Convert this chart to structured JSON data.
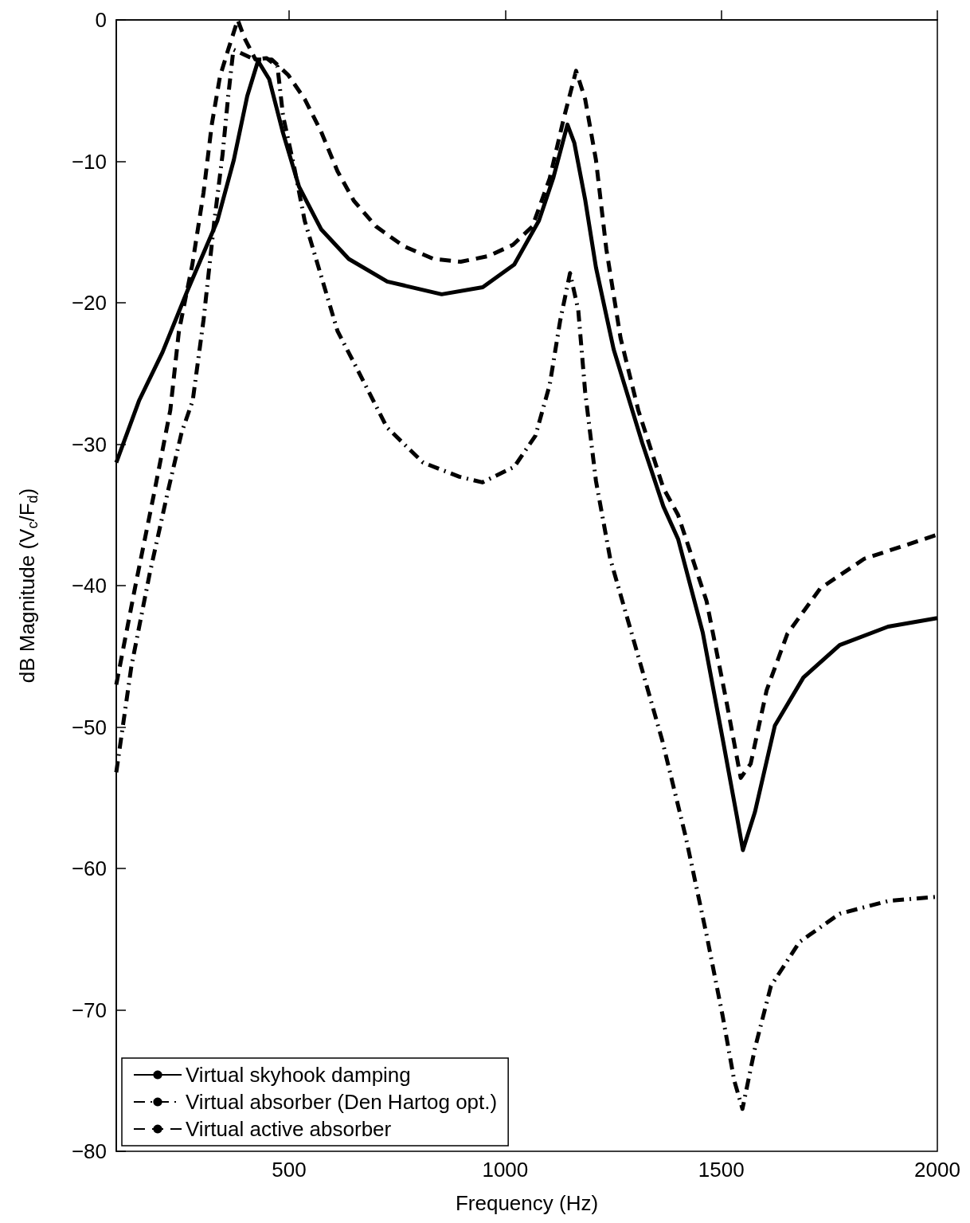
{
  "chart_data": {
    "type": "line",
    "xlabel": "Frequency (Hz)",
    "ylabel": "dB Magnitude (V$_{c}$/F$_{d}$)",
    "xlim": [
      100,
      2000
    ],
    "xticks": [
      500,
      1000,
      1500,
      2000
    ],
    "ylim": [
      -80,
      0
    ],
    "yticks": [
      -80,
      -70,
      -60,
      -50,
      -40,
      -30,
      -20,
      -10,
      0
    ],
    "grid": false,
    "legend": "bottom left",
    "marker": "none",
    "series": [
      {
        "name": "Virtual skyhook damping",
        "color": "#000000",
        "line_style": "solid",
        "x": [
          100,
          153,
          207,
          264,
          334,
          372,
          403,
          428,
          454,
          485,
          523,
          574,
          638,
          727,
          853,
          948,
          1021,
          1078,
          1111,
          1144,
          1160,
          1185,
          1210,
          1251,
          1317,
          1366,
          1400,
          1457,
          1503,
          1536,
          1550,
          1578,
          1624,
          1690,
          1774,
          1886,
          2000
        ],
        "values": [
          -31.3,
          -26.9,
          -23.5,
          -19.2,
          -14.2,
          -9.9,
          -5.4,
          -2.9,
          -4.2,
          -7.9,
          -11.8,
          -14.8,
          -16.9,
          -18.5,
          -19.4,
          -18.9,
          -17.3,
          -14.2,
          -11.2,
          -7.4,
          -8.7,
          -12.7,
          -17.5,
          -23.3,
          -29.9,
          -34.4,
          -36.7,
          -43.3,
          -50.8,
          -56.3,
          -58.7,
          -56.0,
          -49.9,
          -46.5,
          -44.2,
          -42.9,
          -42.3
        ]
      },
      {
        "name": "Virtual absorber (Den Hartog opt.)",
        "color": "#000000",
        "line_style": "dashdot",
        "x": [
          100,
          135,
          177,
          219,
          251,
          277,
          302,
          327,
          346,
          359,
          371,
          420,
          448,
          473,
          486,
          511,
          536,
          574,
          612,
          651,
          726,
          810,
          894,
          947,
          1021,
          1070,
          1103,
          1127,
          1150,
          1169,
          1185,
          1210,
          1243,
          1306,
          1363,
          1418,
          1466,
          1503,
          1530,
          1549,
          1578,
          1615,
          1681,
          1774,
          1886,
          2000
        ],
        "values": [
          -53.2,
          -45.7,
          -39.2,
          -33.4,
          -29.2,
          -26.9,
          -21.2,
          -14.2,
          -9.5,
          -5.4,
          -2.1,
          -2.8,
          -2.7,
          -3.3,
          -6.8,
          -10.3,
          -14.2,
          -18.1,
          -22.0,
          -24.3,
          -28.8,
          -31.3,
          -32.3,
          -32.7,
          -31.6,
          -29.4,
          -25.8,
          -21.3,
          -17.9,
          -20.5,
          -26.3,
          -32.6,
          -38.1,
          -44.8,
          -50.9,
          -57.8,
          -64.7,
          -70.4,
          -75.0,
          -77.0,
          -72.7,
          -68.3,
          -65.2,
          -63.2,
          -62.3,
          -62.0
        ]
      },
      {
        "name": "Virtual active absorber",
        "color": "#000000",
        "line_style": "dashed",
        "x": [
          100,
          145,
          188,
          225,
          245,
          276,
          302,
          321,
          340,
          359,
          381,
          397,
          422,
          460,
          498,
          536,
          574,
          612,
          650,
          701,
          765,
          834,
          897,
          961,
          1018,
          1063,
          1103,
          1136,
          1164,
          1185,
          1210,
          1234,
          1267,
          1308,
          1366,
          1400,
          1466,
          1512,
          1545,
          1568,
          1605,
          1653,
          1729,
          1831,
          2000
        ],
        "values": [
          -47.0,
          -39.9,
          -33.4,
          -27.6,
          -22.0,
          -17.3,
          -12.2,
          -7.4,
          -4.0,
          -2.1,
          0,
          -1.3,
          -2.8,
          -2.8,
          -3.9,
          -5.6,
          -7.9,
          -10.7,
          -12.8,
          -14.6,
          -16.0,
          -16.9,
          -17.1,
          -16.7,
          -15.9,
          -14.6,
          -11.2,
          -6.9,
          -3.6,
          -5.6,
          -9.9,
          -16.2,
          -22.5,
          -27.6,
          -33.1,
          -35.0,
          -41.1,
          -48.2,
          -53.6,
          -52.6,
          -47.4,
          -43.4,
          -40.2,
          -38.1,
          -36.4
        ]
      }
    ]
  }
}
